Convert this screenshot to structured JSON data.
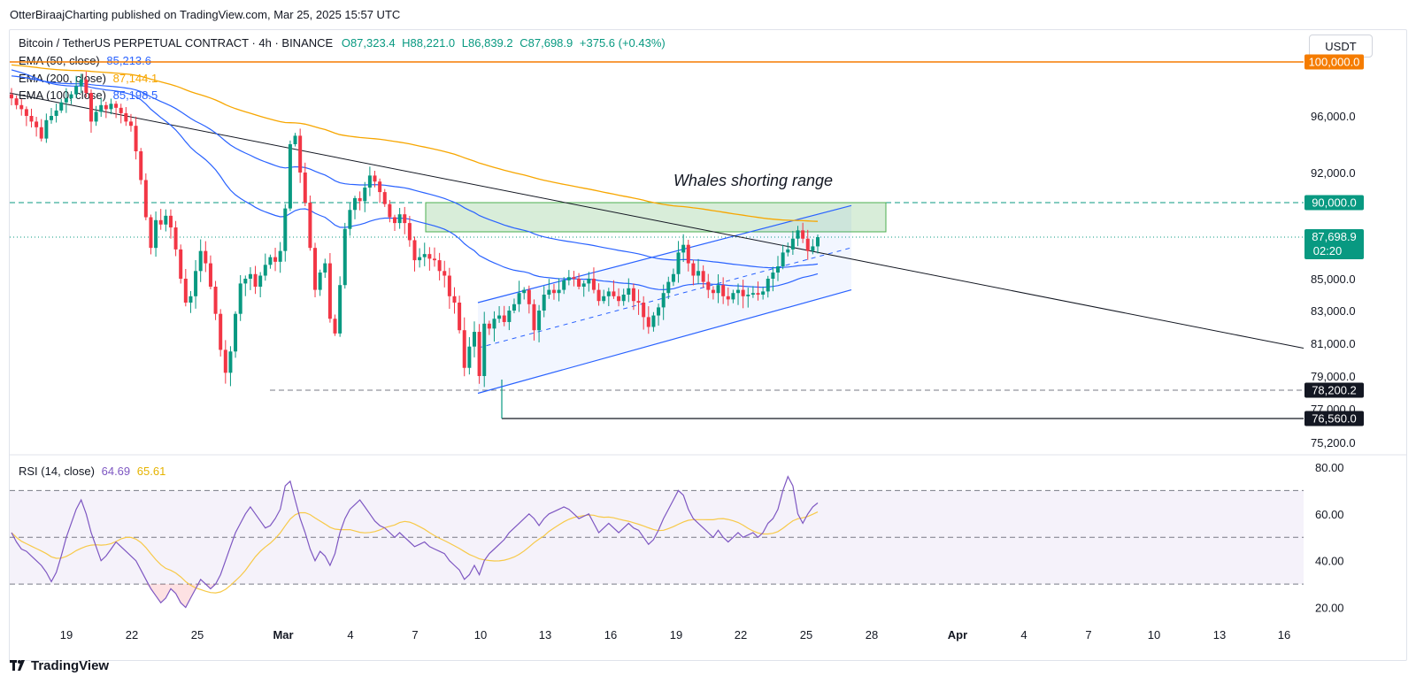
{
  "header": {
    "published_line": "OtterBiraajCharting published on TradingView.com, Mar 25, 2025 15:57 UTC",
    "symbol": "Bitcoin / TetherUS PERPETUAL CONTRACT · 4h · BINANCE",
    "open": "O87,323.4",
    "high": "H88,221.0",
    "low": "L86,839.2",
    "close": "C87,698.9",
    "change": "+375.6 (+0.43%)",
    "currency_button": "USDT"
  },
  "indicators": [
    {
      "label": "EMA (50, close)",
      "value": "85,213.6",
      "color": "#2962ff"
    },
    {
      "label": "EMA (200, close)",
      "value": "87,144.1",
      "color": "#f7a600"
    },
    {
      "label": "EMA (100, close)",
      "value": "85,198.5",
      "color": "#2962ff"
    }
  ],
  "rsi": {
    "label": "RSI (14, close)",
    "value": "64.69",
    "ma_value": "65.61",
    "line_color": "#7e57c2",
    "ma_color": "#f7c948"
  },
  "annotation": "Whales shorting range",
  "price_axis": {
    "ticks": [
      "96,000.0",
      "92,000.0",
      "85,000.0",
      "83,000.0",
      "81,000.0",
      "79,000.0",
      "77,000.0",
      "75,200.0"
    ],
    "partial_ticks": [
      "100,000.0",
      "88,000.0"
    ],
    "badges": [
      {
        "text": "100,000.0",
        "color": "#f57c00",
        "text_color": "#ffffff"
      },
      {
        "text": "90,000.0",
        "color": "#089981",
        "text_color": "#ffffff"
      },
      {
        "text": "87,698.9",
        "sub": "02:20",
        "color": "#089981",
        "text_color": "#ffffff"
      },
      {
        "text": "78,200.2",
        "color": "#131722",
        "text_color": "#ffffff"
      },
      {
        "text": "76,560.0",
        "color": "#131722",
        "text_color": "#ffffff"
      }
    ]
  },
  "rsi_axis": {
    "ticks": [
      "80.00",
      "60.00",
      "40.00",
      "20.00"
    ]
  },
  "time_axis": {
    "ticks": [
      "19",
      "22",
      "25",
      "Mar",
      "4",
      "7",
      "10",
      "13",
      "16",
      "19",
      "22",
      "25",
      "28",
      "Apr",
      "4",
      "7",
      "10",
      "13",
      "16"
    ]
  },
  "chart_data": {
    "type": "candlestick",
    "symbol": "BTCUSDT.P",
    "timeframe": "4h",
    "price_panel": {
      "ylim": [
        74800,
        101500
      ],
      "horizontal_levels": [
        {
          "value": 100000,
          "style": "solid",
          "color": "#f57c00"
        },
        {
          "value": 90000,
          "style": "dashed",
          "color": "#089981"
        },
        {
          "value": 87698.9,
          "style": "dotted",
          "color": "#089981"
        },
        {
          "value": 78200.2,
          "style": "dashed",
          "color": "#787b86"
        },
        {
          "value": 76560,
          "style": "solid",
          "color": "#131722"
        }
      ],
      "zone": {
        "label": "Whales shorting range",
        "from": 88000,
        "to": 90000,
        "color": "#4caf50"
      },
      "trendline": {
        "color": "#131722",
        "from_date": "Feb 16",
        "from_value": 97700,
        "to_date": "Apr 1",
        "to_value": 80700
      },
      "ascending_channel": {
        "color": "#2962ff",
        "upper": [
          [
            "Mar 10",
            83500
          ],
          [
            "Mar 27",
            89800
          ]
        ],
        "lower": [
          [
            "Mar 10",
            78000
          ],
          [
            "Mar 27",
            84300
          ]
        ]
      },
      "candle_closes": [
        97300,
        96800,
        96500,
        96000,
        95600,
        95200,
        94400,
        95700,
        96000,
        96400,
        97000,
        97300,
        97600,
        98200,
        98700,
        97700,
        95600,
        96300,
        96800,
        96500,
        96900,
        96600,
        96200,
        95600,
        95300,
        93500,
        91500,
        89000,
        87000,
        88800,
        88500,
        89100,
        88300,
        86900,
        85000,
        83500,
        83900,
        85500,
        86800,
        86000,
        84500,
        82800,
        80600,
        79200,
        80500,
        82800,
        84700,
        85000,
        85300,
        84500,
        85200,
        85900,
        86400,
        86100,
        86800,
        89600,
        94000,
        94600,
        92000,
        90000,
        87000,
        84300,
        85400,
        86000,
        82500,
        81600,
        84600,
        88200,
        89500,
        90300,
        90100,
        91000,
        91800,
        91400,
        90700,
        89900,
        89000,
        88600,
        89200,
        88600,
        87500,
        86200,
        86400,
        86600,
        86300,
        86200,
        85500,
        85200,
        83900,
        83500,
        81800,
        79500,
        80800,
        81700,
        79000,
        82200,
        81900,
        82500,
        82700,
        82300,
        83000,
        83400,
        84100,
        84300,
        83400,
        81800,
        83000,
        84000,
        84300,
        84100,
        84300,
        84900,
        85100,
        85000,
        84500,
        84700,
        85000,
        84300,
        83600,
        83900,
        84200,
        83900,
        83600,
        84000,
        84400,
        83600,
        83500,
        82600,
        82000,
        82700,
        83200,
        84100,
        84800,
        85300,
        86700,
        87200,
        86000,
        85200,
        85500,
        84800,
        84300,
        84100,
        84600,
        83900,
        83700,
        84100,
        84300,
        83900,
        84000,
        84100,
        84000,
        84200,
        85000,
        85400,
        85800,
        86700,
        86900,
        87600,
        88100,
        87600,
        86800,
        87100,
        87699
      ],
      "ema_50": {
        "label": "EMA (50, close)",
        "last": 85213.6,
        "color": "#2962ff"
      },
      "ema_100": {
        "label": "EMA (100, close)",
        "last": 85198.5,
        "color": "#2962ff"
      },
      "ema_200": {
        "label": "EMA (200, close)",
        "last": 87144.1,
        "color": "#f7a600"
      }
    },
    "rsi_panel": {
      "ylim": [
        13,
        85
      ],
      "bands": [
        70,
        50,
        30
      ],
      "rsi_values": [
        52,
        48,
        45,
        44,
        42,
        40,
        38,
        35,
        31,
        35,
        42,
        50,
        56,
        62,
        66,
        60,
        52,
        46,
        40,
        42,
        45,
        48,
        46,
        44,
        42,
        40,
        36,
        32,
        28,
        25,
        22,
        24,
        28,
        26,
        22,
        20,
        24,
        28,
        32,
        30,
        28,
        30,
        34,
        40,
        46,
        52,
        56,
        60,
        63,
        60,
        57,
        54,
        55,
        58,
        62,
        72,
        74,
        66,
        58,
        52,
        45,
        40,
        44,
        42,
        38,
        43,
        52,
        58,
        62,
        64,
        66,
        63,
        60,
        57,
        55,
        54,
        52,
        50,
        52,
        50,
        48,
        46,
        47,
        48,
        46,
        45,
        44,
        43,
        40,
        38,
        36,
        32,
        34,
        38,
        34,
        40,
        43,
        45,
        47,
        49,
        52,
        54,
        56,
        58,
        60,
        58,
        55,
        58,
        60,
        61,
        62,
        63,
        62,
        60,
        58,
        59,
        60,
        56,
        52,
        54,
        56,
        54,
        52,
        54,
        56,
        54,
        53,
        50,
        47,
        49,
        53,
        58,
        62,
        66,
        70,
        68,
        62,
        58,
        56,
        54,
        52,
        50,
        53,
        50,
        48,
        50,
        52,
        50,
        51,
        52,
        50,
        52,
        56,
        58,
        62,
        70,
        76,
        72,
        60,
        56,
        60,
        63,
        64.69
      ],
      "rsi_ma_last": 65.61
    }
  }
}
